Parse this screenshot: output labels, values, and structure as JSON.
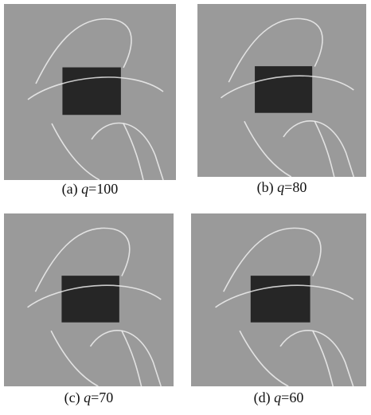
{
  "figure": {
    "panels": [
      {
        "tag": "(a)",
        "symbol": "q",
        "setting": "=100"
      },
      {
        "tag": "(b)",
        "symbol": "q",
        "setting": "=80"
      },
      {
        "tag": "(c)",
        "symbol": "q",
        "setting": "=70"
      },
      {
        "tag": "(d)",
        "symbol": "q",
        "setting": "=60"
      }
    ]
  }
}
